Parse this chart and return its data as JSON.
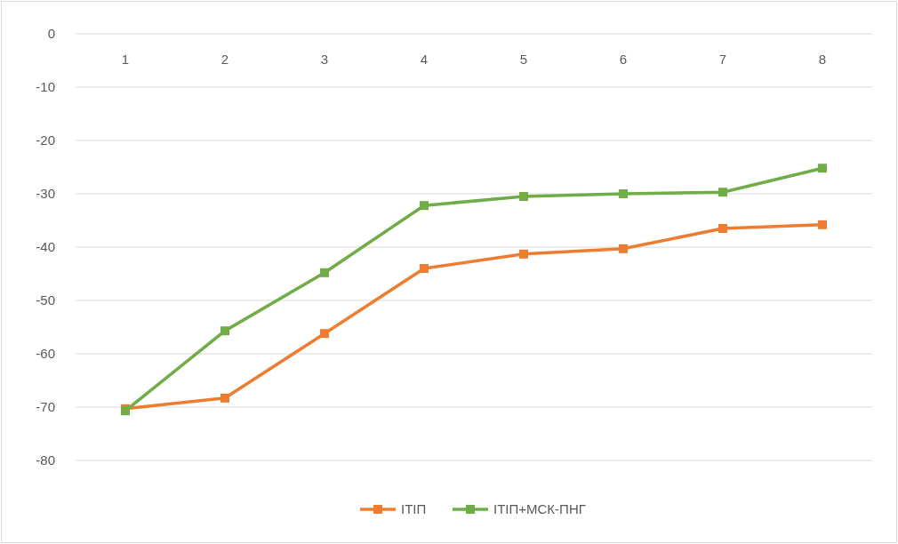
{
  "chart_data": {
    "type": "line",
    "categories": [
      "1",
      "2",
      "3",
      "4",
      "5",
      "6",
      "7",
      "8"
    ],
    "series": [
      {
        "name": "ІТІП",
        "color": "#ed7d31",
        "values": [
          -70.3,
          -68.3,
          -56.2,
          -44,
          -41.3,
          -40.3,
          -36.5,
          -35.8
        ]
      },
      {
        "name": "ІТІП+МСК-ПНГ",
        "color": "#70ad47",
        "values": [
          -70.7,
          -55.7,
          -44.8,
          -32.2,
          -30.5,
          -30,
          -29.7,
          -25.2
        ]
      }
    ],
    "ylim": [
      -80,
      0
    ],
    "yticks": [
      0,
      -10,
      -20,
      -30,
      -40,
      -50,
      -60,
      -70,
      -80
    ],
    "grid": "y",
    "legend": "bottom",
    "marker": "square",
    "line_style": "solid"
  }
}
